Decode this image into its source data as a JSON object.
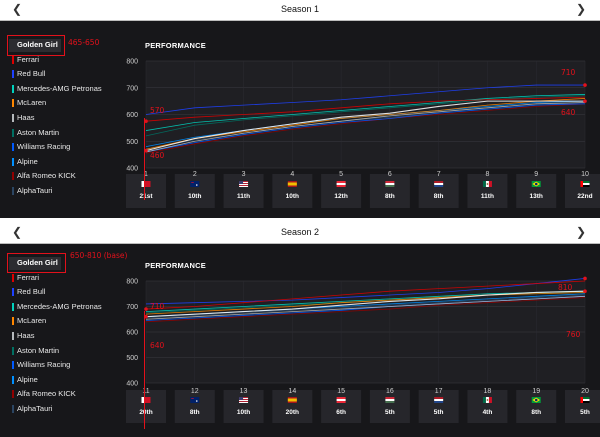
{
  "teams": [
    "Golden Girl",
    "Ferrari",
    "Red Bull",
    "Mercedes-AMG Petronas",
    "McLaren",
    "Haas",
    "Aston Martin",
    "Williams Racing",
    "Alpine",
    "Alfa Romeo KICK",
    "AlphaTauri"
  ],
  "team_colors": [
    "#f5f5f5",
    "#dc0000",
    "#1e41ff",
    "#00d2be",
    "#ff8700",
    "#b6babd",
    "#006f62",
    "#005aff",
    "#0090ff",
    "#900000",
    "#2b4562"
  ],
  "seasons": [
    {
      "title": "Season 1",
      "performance_label": "PERFORMANCE",
      "annotation_range": "465-650",
      "annotation_left_top": "570",
      "annotation_left_bottom": "460",
      "annotation_right_top": "710",
      "annotation_right_bottom": "640",
      "races": [
        {
          "round": "1",
          "flag": "bahrain",
          "pos": "21st"
        },
        {
          "round": "2",
          "flag": "australia",
          "pos": "10th"
        },
        {
          "round": "3",
          "flag": "usa",
          "pos": "11th"
        },
        {
          "round": "4",
          "flag": "spain",
          "pos": "10th"
        },
        {
          "round": "5",
          "flag": "austria",
          "pos": "12th"
        },
        {
          "round": "6",
          "flag": "hungary",
          "pos": "8th"
        },
        {
          "round": "7",
          "flag": "netherlands",
          "pos": "8th"
        },
        {
          "round": "8",
          "flag": "mexico",
          "pos": "11th"
        },
        {
          "round": "9",
          "flag": "brazil",
          "pos": "13th"
        },
        {
          "round": "10",
          "flag": "uae",
          "pos": "22nd"
        }
      ],
      "chart_data": {
        "type": "line",
        "x": [
          1,
          2,
          3,
          4,
          5,
          6,
          7,
          8,
          9,
          10
        ],
        "ylim": [
          400,
          800
        ],
        "yticks": [
          400,
          500,
          600,
          700,
          800
        ],
        "series": [
          {
            "name": "Golden Girl",
            "values": [
              465,
              510,
              540,
              565,
              590,
              605,
              630,
              650,
              650,
              650
            ]
          },
          {
            "name": "Ferrari",
            "values": [
              575,
              590,
              600,
              610,
              625,
              640,
              650,
              655,
              660,
              665
            ]
          },
          {
            "name": "Red Bull",
            "values": [
              600,
              625,
              635,
              645,
              655,
              670,
              685,
              700,
              710,
              710
            ]
          },
          {
            "name": "Mercedes-AMG Petronas",
            "values": [
              540,
              570,
              585,
              600,
              615,
              630,
              645,
              660,
              670,
              675
            ]
          },
          {
            "name": "McLaren",
            "values": [
              470,
              510,
              535,
              560,
              585,
              600,
              615,
              635,
              650,
              660
            ]
          },
          {
            "name": "Haas",
            "values": [
              460,
              500,
              530,
              555,
              575,
              595,
              610,
              625,
              640,
              645
            ]
          },
          {
            "name": "Aston Martin",
            "values": [
              520,
              560,
              580,
              595,
              610,
              625,
              640,
              655,
              665,
              670
            ]
          },
          {
            "name": "Williams Racing",
            "values": [
              460,
              495,
              525,
              550,
              570,
              585,
              605,
              620,
              635,
              640
            ]
          },
          {
            "name": "Alpine",
            "values": [
              480,
              515,
              540,
              565,
              585,
              600,
              615,
              630,
              645,
              650
            ]
          },
          {
            "name": "Alfa Romeo KICK",
            "values": [
              455,
              490,
              520,
              545,
              565,
              585,
              600,
              615,
              630,
              640
            ]
          },
          {
            "name": "AlphaTauri",
            "values": [
              470,
              505,
              530,
              555,
              575,
              590,
              605,
              620,
              635,
              645
            ]
          }
        ]
      }
    },
    {
      "title": "Season 2",
      "performance_label": "PERFORMANCE",
      "annotation_range": "650-810 (base)",
      "annotation_left_top": "710",
      "annotation_left_bottom": "640",
      "annotation_right_top": "810",
      "annotation_right_bottom": "760",
      "races": [
        {
          "round": "11",
          "flag": "bahrain",
          "pos": "20th"
        },
        {
          "round": "12",
          "flag": "australia",
          "pos": "8th"
        },
        {
          "round": "13",
          "flag": "usa",
          "pos": "10th"
        },
        {
          "round": "14",
          "flag": "spain",
          "pos": "20th"
        },
        {
          "round": "15",
          "flag": "austria",
          "pos": "6th"
        },
        {
          "round": "16",
          "flag": "hungary",
          "pos": "5th"
        },
        {
          "round": "17",
          "flag": "netherlands",
          "pos": "5th"
        },
        {
          "round": "18",
          "flag": "mexico",
          "pos": "4th"
        },
        {
          "round": "19",
          "flag": "brazil",
          "pos": "8th"
        },
        {
          "round": "20",
          "flag": "uae",
          "pos": "5th"
        }
      ],
      "chart_data": {
        "type": "line",
        "x": [
          11,
          12,
          13,
          14,
          15,
          16,
          17,
          18,
          19,
          20
        ],
        "ylim": [
          400,
          800
        ],
        "yticks": [
          400,
          500,
          600,
          700,
          800
        ],
        "series": [
          {
            "name": "Golden Girl",
            "values": [
              660,
              670,
              680,
              690,
              705,
              720,
              730,
              745,
              755,
              760
            ]
          },
          {
            "name": "Ferrari",
            "values": [
              690,
              700,
              715,
              730,
              745,
              760,
              770,
              780,
              790,
              800
            ]
          },
          {
            "name": "Red Bull",
            "values": [
              710,
              715,
              720,
              725,
              735,
              745,
              755,
              770,
              790,
              810
            ]
          },
          {
            "name": "Mercedes-AMG Petronas",
            "values": [
              680,
              690,
              700,
              710,
              720,
              730,
              740,
              750,
              755,
              760
            ]
          },
          {
            "name": "McLaren",
            "values": [
              670,
              680,
              690,
              700,
              715,
              725,
              735,
              745,
              750,
              755
            ]
          },
          {
            "name": "Haas",
            "values": [
              650,
              660,
              670,
              680,
              690,
              700,
              710,
              720,
              730,
              740
            ]
          },
          {
            "name": "Aston Martin",
            "values": [
              675,
              685,
              695,
              705,
              715,
              725,
              735,
              745,
              750,
              755
            ]
          },
          {
            "name": "Williams Racing",
            "values": [
              645,
              655,
              665,
              675,
              685,
              700,
              710,
              720,
              730,
              740
            ]
          },
          {
            "name": "Alpine",
            "values": [
              660,
              670,
              680,
              690,
              700,
              710,
              720,
              730,
              740,
              750
            ]
          },
          {
            "name": "Alfa Romeo KICK",
            "values": [
              640,
              650,
              660,
              670,
              680,
              690,
              705,
              715,
              725,
              735
            ]
          },
          {
            "name": "AlphaTauri",
            "values": [
              655,
              665,
              675,
              685,
              695,
              705,
              715,
              725,
              735,
              745
            ]
          }
        ]
      }
    }
  ]
}
